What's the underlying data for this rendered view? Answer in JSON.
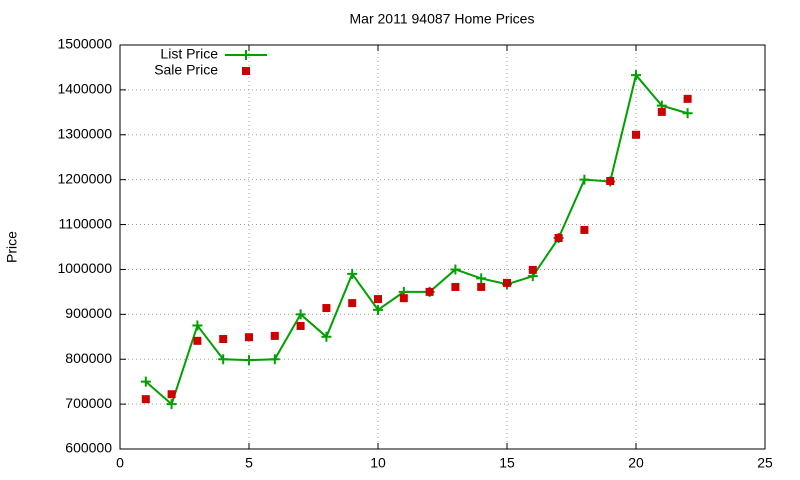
{
  "chart_data": {
    "type": "line",
    "title": "Mar 2011 94087 Home Prices",
    "y_label": "Price",
    "x": [
      1,
      2,
      3,
      4,
      5,
      6,
      7,
      8,
      9,
      10,
      11,
      12,
      13,
      14,
      15,
      16,
      17,
      18,
      19,
      20,
      21,
      22
    ],
    "series": [
      {
        "name": "List Price",
        "color": "#00a000",
        "mode": "lines+markers",
        "marker": "plus",
        "values": [
          750000,
          700000,
          875000,
          800000,
          798000,
          800000,
          900000,
          850000,
          990000,
          910000,
          950000,
          950000,
          1000000,
          980000,
          967000,
          985000,
          1070000,
          1200000,
          1196000,
          1433000,
          1365000,
          1348000
        ]
      },
      {
        "name": "Sale Price",
        "color": "#cc0000",
        "mode": "markers",
        "marker": "square",
        "values": [
          711000,
          722000,
          841000,
          845000,
          849000,
          852000,
          874000,
          914000,
          925000,
          934000,
          936000,
          950000,
          961000,
          961000,
          970000,
          999000,
          1070000,
          1088000,
          1197000,
          1300000,
          1351000,
          1380000
        ]
      }
    ],
    "xlim": [
      0,
      25
    ],
    "xticks": [
      0,
      5,
      10,
      15,
      20,
      25
    ],
    "ylim": [
      600000,
      1500000
    ],
    "yticks": [
      600000,
      700000,
      800000,
      900000,
      1000000,
      1100000,
      1200000,
      1300000,
      1400000,
      1500000
    ],
    "grid": true,
    "legend": "top-left"
  }
}
